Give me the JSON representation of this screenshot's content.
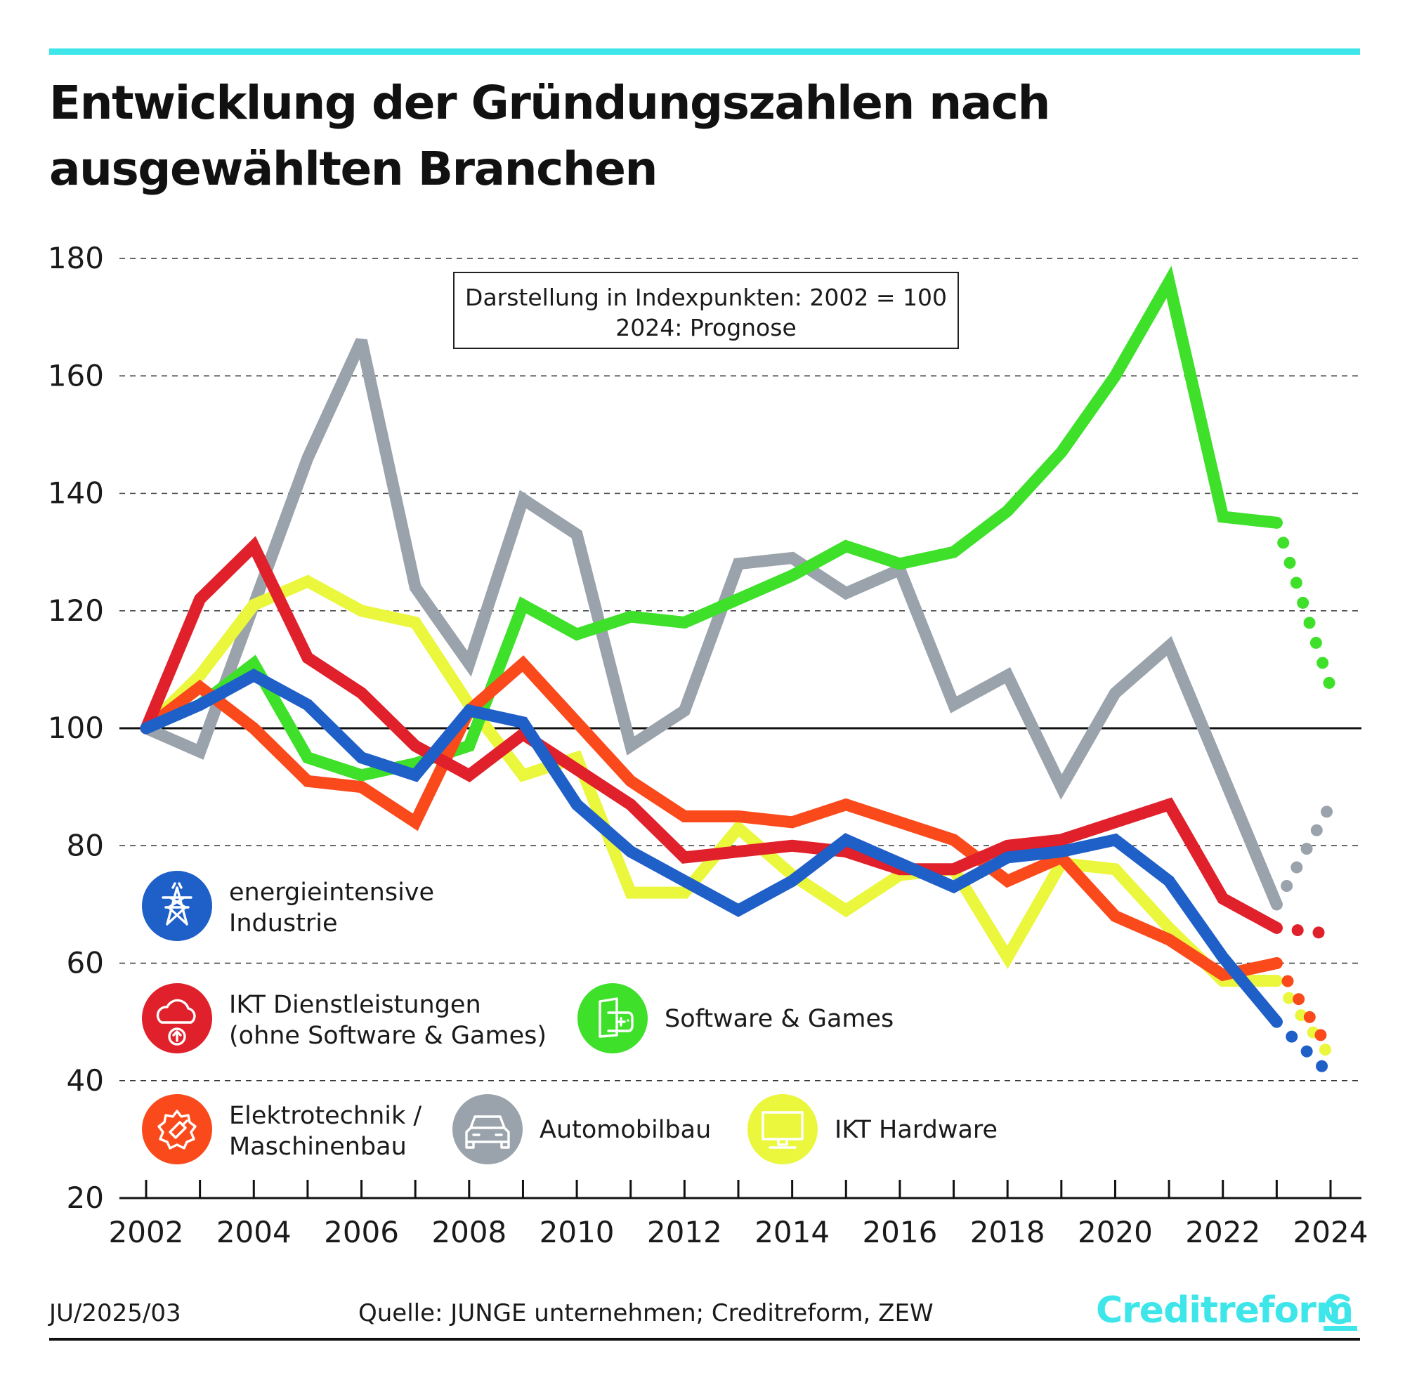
{
  "title": "Entwicklung der Gründungszahlen nach ausgewählten Branchen",
  "note": {
    "line1": "Darstellung in Indexpunkten: 2002 = 100",
    "line2": "2024: Prognose"
  },
  "footer": {
    "id": "JU/2025/03",
    "source": "Quelle: JUNGE unternehmen; Creditreform, ZEW",
    "brand": "Creditreform"
  },
  "colors": {
    "accent": "#3ee6ea",
    "energy": "#1f5fc8",
    "ikt_dienst": "#e0202a",
    "software": "#3ee02a",
    "elektro": "#fa4a1c",
    "auto": "#9aa3ab",
    "hardware": "#eaf73c"
  },
  "chart_data": {
    "type": "line",
    "title": "Entwicklung der Gründungszahlen nach ausgewählten Branchen",
    "xlabel": "",
    "ylabel": "",
    "ylim": [
      20,
      180
    ],
    "yticks": [
      20,
      40,
      60,
      80,
      100,
      120,
      140,
      160,
      180
    ],
    "xticks": [
      "2002",
      "2004",
      "2006",
      "2008",
      "2010",
      "2012",
      "2014",
      "2016",
      "2018",
      "2020",
      "2022",
      "2024"
    ],
    "grid": "dashed horizontal",
    "reference_line": 100,
    "x": [
      2002,
      2003,
      2004,
      2005,
      2006,
      2007,
      2008,
      2009,
      2010,
      2011,
      2012,
      2013,
      2014,
      2015,
      2016,
      2017,
      2018,
      2019,
      2020,
      2021,
      2022,
      2023,
      2024
    ],
    "forecast_from": 2023,
    "series": [
      {
        "key": "auto",
        "name": "Automobilbau",
        "icon": "car-icon",
        "values": [
          100,
          96,
          121,
          146,
          166,
          124,
          111,
          139,
          133,
          97,
          103,
          128,
          129,
          123,
          127,
          104,
          109,
          90,
          106,
          114,
          92,
          70,
          87
        ]
      },
      {
        "key": "hardware",
        "name": "IKT Hardware",
        "icon": "monitor-icon",
        "values": [
          100,
          109,
          121,
          125,
          120,
          118,
          104,
          92,
          95,
          72,
          72,
          83,
          75,
          69,
          75,
          76,
          61,
          77,
          76,
          66,
          57,
          57,
          44
        ]
      },
      {
        "key": "software",
        "name": "Software & Games",
        "icon": "gamepad-icon",
        "values": [
          100,
          104,
          111,
          95,
          92,
          94,
          97,
          121,
          116,
          119,
          118,
          122,
          126,
          131,
          128,
          130,
          137,
          147,
          160,
          176,
          136,
          135,
          107
        ]
      },
      {
        "key": "elektro",
        "name": "Elektrotechnik / Maschinenbau",
        "icon": "gear-icon",
        "values": [
          100,
          107,
          100,
          91,
          90,
          84,
          103,
          111,
          101,
          91,
          85,
          85,
          84,
          87,
          84,
          81,
          74,
          78,
          68,
          64,
          58,
          60,
          45
        ]
      },
      {
        "key": "ikt_dienst",
        "name": "IKT Dienstleistungen (ohne Software & Games)",
        "icon": "cloud-upload-icon",
        "values": [
          100,
          122,
          131,
          112,
          106,
          97,
          92,
          99,
          93,
          87,
          78,
          79,
          80,
          79,
          76,
          76,
          80,
          81,
          84,
          87,
          71,
          66,
          65
        ]
      },
      {
        "key": "energy",
        "name": "energieintensive Industrie",
        "icon": "power-pylon-icon",
        "values": [
          100,
          104,
          109,
          104,
          95,
          92,
          103,
          101,
          87,
          79,
          74,
          69,
          74,
          81,
          77,
          73,
          78,
          79,
          81,
          74,
          61,
          50,
          41
        ]
      }
    ]
  },
  "legend": [
    {
      "key": "energy",
      "line1": "energieintensive",
      "line2": "Industrie"
    },
    {
      "key": "ikt_dienst",
      "line1": "IKT Dienstleistungen",
      "line2": "(ohne Software & Games)"
    },
    {
      "key": "software",
      "line1": "Software & Games",
      "line2": ""
    },
    {
      "key": "elektro",
      "line1": "Elektrotechnik /",
      "line2": "Maschinenbau"
    },
    {
      "key": "auto",
      "line1": "Automobilbau",
      "line2": ""
    },
    {
      "key": "hardware",
      "line1": "IKT Hardware",
      "line2": ""
    }
  ]
}
